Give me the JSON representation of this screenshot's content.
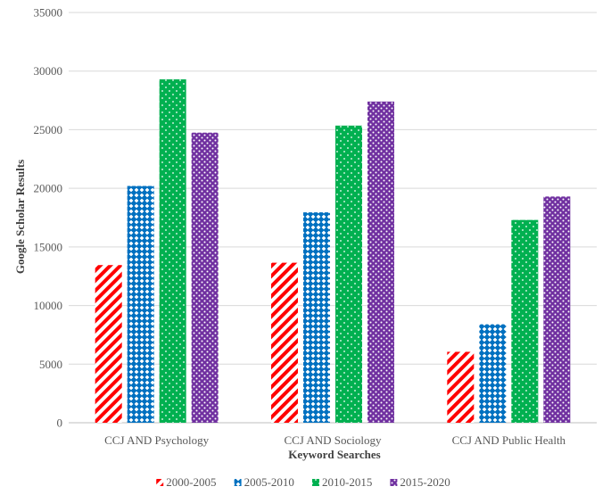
{
  "chart_data": {
    "type": "bar",
    "title": "",
    "xlabel": "Keyword Searches",
    "ylabel": "Google Scholar Results",
    "categories": [
      "CCJ AND Psychology",
      "CCJ AND Sociology",
      "CCJ AND Public Health"
    ],
    "series": [
      {
        "name": "2000-2005",
        "values": [
          13450,
          13650,
          6050
        ],
        "color": "#FF0000",
        "pattern": "diagonal-stripes"
      },
      {
        "name": "2005-2010",
        "values": [
          20200,
          17950,
          8400
        ],
        "color": "#0070C0",
        "pattern": "diamond-grid"
      },
      {
        "name": "2010-2015",
        "values": [
          29300,
          25350,
          17300
        ],
        "color": "#00B050",
        "pattern": "dots"
      },
      {
        "name": "2015-2020",
        "values": [
          24750,
          27400,
          19300
        ],
        "color": "#7030A0",
        "pattern": "checker-dots"
      }
    ],
    "ylim": [
      0,
      35000
    ],
    "yticks": [
      "0",
      "5000",
      "10000",
      "15000",
      "20000",
      "25000",
      "30000",
      "35000"
    ],
    "grid": true,
    "legend": "bottom"
  }
}
